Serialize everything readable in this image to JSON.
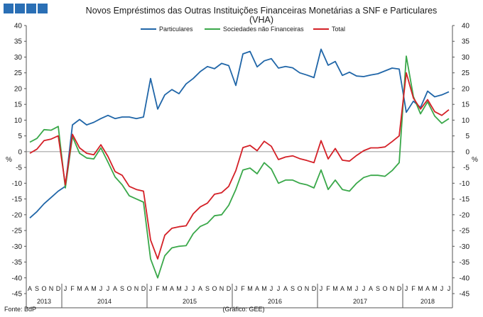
{
  "chart_data": {
    "type": "line",
    "title": "Novos Empréstimos das Outras Instituições Financeiras Monetárias a SNF e Particulares",
    "subtitle": "(VHA)",
    "ylabel_left": "%",
    "ylabel_right": "%",
    "ylim": [
      -45,
      40
    ],
    "yticks": [
      40,
      35,
      30,
      25,
      20,
      15,
      10,
      5,
      0,
      -5,
      -10,
      -15,
      -20,
      -25,
      -30,
      -35,
      -40,
      -45
    ],
    "x_month_labels": [
      "A",
      "S",
      "O",
      "N",
      "D",
      "J",
      "F",
      "M",
      "A",
      "M",
      "J",
      "J",
      "A",
      "S",
      "O",
      "N",
      "D",
      "J",
      "F",
      "M",
      "A",
      "M",
      "J",
      "J",
      "A",
      "S",
      "O",
      "N",
      "D",
      "J",
      "F",
      "M",
      "A",
      "M",
      "J",
      "J",
      "A",
      "S",
      "O",
      "N",
      "D",
      "J",
      "F",
      "M",
      "A",
      "M",
      "J",
      "J",
      "A",
      "S",
      "O",
      "N",
      "D",
      "J",
      "F",
      "M",
      "A",
      "M",
      "J",
      "J"
    ],
    "x_year_labels": [
      {
        "label": "2013",
        "start": 0,
        "end": 5
      },
      {
        "label": "2014",
        "start": 5,
        "end": 17
      },
      {
        "label": "2015",
        "start": 17,
        "end": 29
      },
      {
        "label": "2016",
        "start": 29,
        "end": 41
      },
      {
        "label": "2017",
        "start": 41,
        "end": 53
      },
      {
        "label": "2018",
        "start": 53,
        "end": 60
      }
    ],
    "series": [
      {
        "name": "Particulares",
        "color": "#2066a8",
        "values": [
          -21,
          -19,
          -16.5,
          -14.5,
          -12.5,
          -11,
          8.5,
          10.2,
          8.5,
          9.3,
          10.5,
          11.5,
          10.5,
          11,
          11,
          10.5,
          11,
          23.2,
          13.5,
          18,
          19.7,
          18.4,
          21.5,
          23.2,
          25.4,
          27,
          26.3,
          28,
          27.3,
          21,
          31,
          31.8,
          26.9,
          28.8,
          29.5,
          26.5,
          27,
          26.6,
          25,
          24.3,
          23.5,
          32.5,
          27.4,
          28.6,
          24.2,
          25.2,
          24,
          23.8,
          24.3,
          24.7,
          25.6,
          26.5,
          26.2,
          12.5,
          16,
          14,
          19.2,
          17.4,
          18,
          19
        ],
        "show_legend": true
      },
      {
        "name": "Sociedades não Financeiras",
        "color": "#3aa84a",
        "values": [
          3,
          4.2,
          7,
          6.8,
          8,
          -11.5,
          4.8,
          -0.5,
          -2,
          -2.3,
          1.2,
          -3.3,
          -8,
          -10.5,
          -14,
          -15,
          -16,
          -34,
          -40,
          -33,
          -30.5,
          -30,
          -29.8,
          -26,
          -23.7,
          -22.7,
          -20.3,
          -20,
          -17,
          -12,
          -5.8,
          -5.2,
          -7,
          -3.5,
          -5.5,
          -10,
          -9,
          -9,
          -10,
          -10.5,
          -11.5,
          -5.8,
          -12,
          -9,
          -12,
          -12.5,
          -10,
          -8.2,
          -7.5,
          -7.5,
          -7.8,
          -6,
          -3.5,
          30.3,
          17.5,
          12,
          15.8,
          11.3,
          9,
          10.5
        ],
        "show_legend": true
      },
      {
        "name": "Total",
        "color": "#d42027",
        "values": [
          -0.5,
          0.8,
          3.5,
          4,
          5,
          -10.5,
          5.5,
          1.2,
          -0.5,
          -1,
          2.2,
          -1.5,
          -6.3,
          -7.5,
          -11,
          -12,
          -12.5,
          -28,
          -34,
          -26.5,
          -24.3,
          -23.8,
          -23.5,
          -19.7,
          -17.5,
          -16.3,
          -13.5,
          -13,
          -11,
          -6,
          1.3,
          2,
          0.3,
          3.3,
          1.7,
          -2.5,
          -1.7,
          -1.3,
          -2.2,
          -2.8,
          -3.5,
          3.5,
          -2.3,
          1,
          -2.7,
          -3,
          -1.2,
          0.3,
          1.2,
          1.2,
          1.5,
          3.2,
          5,
          25,
          17,
          13.5,
          16.5,
          12.7,
          11.5,
          13.3
        ],
        "show_legend": true
      }
    ],
    "grid": false,
    "legend": "top",
    "footer_left": "Fonte: BdP",
    "footer_center": "(Gráfico: GEE)"
  },
  "logo": {
    "color": "#2a6fb5",
    "count": 4
  }
}
